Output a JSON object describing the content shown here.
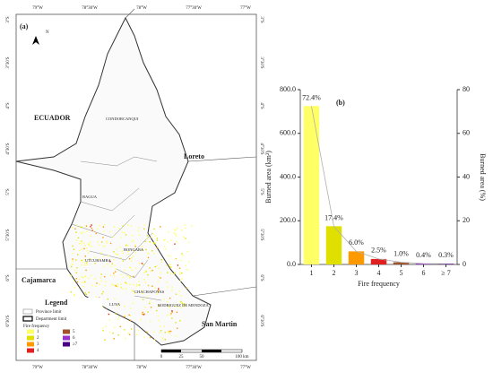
{
  "chart_data": {
    "type": "bar",
    "panel_label": "(b)",
    "categories": [
      "1",
      "2",
      "3",
      "4",
      "5",
      "6",
      "≥ 7"
    ],
    "values": [
      725,
      175,
      60,
      25,
      10,
      4,
      3
    ],
    "colors": [
      "#ffff66",
      "#e0e000",
      "#ff9900",
      "#e02020",
      "#a0522d",
      "#9933cc",
      "#4b0082"
    ],
    "ylabel": "Burned area (km²)",
    "y2label": "Burned area (%)",
    "xlabel": "Fire frequency",
    "ylim": [
      0,
      800
    ],
    "yticks": [
      {
        "value": 0,
        "label": "0.0"
      },
      {
        "value": 200,
        "label": "200.0"
      },
      {
        "value": 400,
        "label": "400.0"
      },
      {
        "value": 600,
        "label": "600.0"
      },
      {
        "value": 800,
        "label": "800.0"
      }
    ],
    "y2lim": [
      0,
      80
    ],
    "y2ticks": [
      0,
      20,
      40,
      60,
      80
    ],
    "line": {
      "axis": "y2",
      "color": "#b0b0b0",
      "values": [
        72.4,
        17.4,
        6.0,
        2.5,
        1.0,
        0.4,
        0.3
      ],
      "value_labels": [
        "72.4%",
        "17.4%",
        "6.0%",
        "2.5%",
        "1.0%",
        "0.4%",
        "0.3%"
      ]
    }
  },
  "map": {
    "panel_label": "(a)",
    "north": "N",
    "lon_labels": [
      "79°W",
      "78°30'W",
      "78°W",
      "77°30'W",
      "77°W"
    ],
    "lat_labels": [
      "3°S",
      "3°30'S",
      "4°S",
      "4°30'S",
      "5°S",
      "5°30'S",
      "6°S",
      "6°30'S"
    ],
    "regions": [
      "ECUADOR",
      "Loreto",
      "Cajamarca",
      "San Martin"
    ],
    "provinces": [
      "CONDORCANQUI",
      "BAGUA",
      "BONGARA",
      "UTCUBAMBA",
      "CHACHAPOYAS",
      "LUYA",
      "RODRIGUEZ DE MENDOZA"
    ],
    "legend": {
      "title": "Legend",
      "province": "Province limit",
      "department": "Department limit",
      "fire_title": "Fire frequency",
      "items": [
        "1",
        "2",
        "3",
        "4",
        "5",
        "6",
        "≥7"
      ]
    },
    "scale": [
      "0",
      "25",
      "50",
      "100 km"
    ]
  }
}
